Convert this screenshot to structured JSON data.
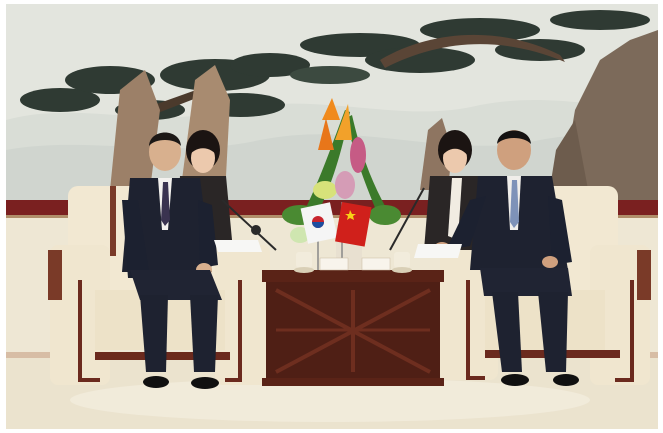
{
  "image": {
    "kind": "photograph",
    "palette": {
      "mural_sky": "#e4e6df",
      "mural_ink": "#2f3a33",
      "wall_band": "#7a1f1f",
      "carpet": "#ece6d4",
      "armchair": "#efe4cc",
      "chair_trim": "#6b2a1e",
      "table_wood": "#5a2317",
      "suit_dark": "#1e2230",
      "flag_red": "#d0201b",
      "flower_orange": "#f08a1c"
    },
    "nameplates": [
      "",
      ""
    ]
  }
}
